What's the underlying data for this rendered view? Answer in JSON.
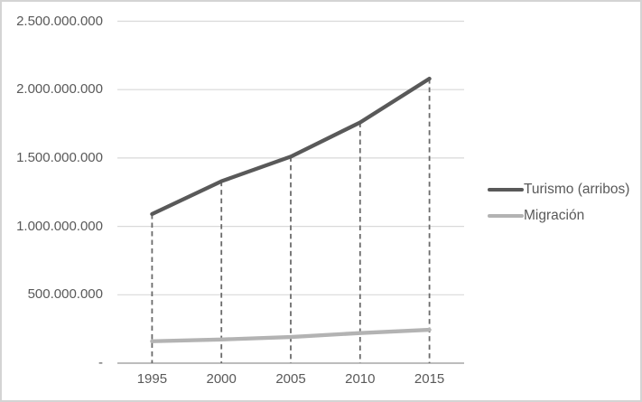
{
  "chart_data": {
    "type": "line",
    "categories": [
      "1995",
      "2000",
      "2005",
      "2010",
      "2015"
    ],
    "series": [
      {
        "id": "turismo",
        "name": "Turismo (arribos)",
        "color": "#595959",
        "values": [
          1090000000,
          1330000000,
          1510000000,
          1760000000,
          2080000000
        ]
      },
      {
        "id": "migracion",
        "name": "Migración",
        "color": "#b3b3b3",
        "values": [
          160000000,
          173000000,
          191000000,
          220000000,
          244000000
        ]
      }
    ],
    "y_axis": {
      "ylim": [
        0,
        2500000000
      ],
      "ticks": [
        {
          "label": "2.500.000.000",
          "value": 2500000000
        },
        {
          "label": "2.000.000.000",
          "value": 2000000000
        },
        {
          "label": "1.500.000.000",
          "value": 1500000000
        },
        {
          "label": "1.000.000.000",
          "value": 1000000000
        },
        {
          "label": "500.000.000",
          "value": 500000000
        },
        {
          "label": "-",
          "value": 0
        }
      ]
    },
    "title": "",
    "xlabel": "",
    "ylabel": "",
    "grid": "horizontal",
    "drop_lines_from_series": "turismo",
    "legend_position": "right",
    "colors": {
      "gridline": "#d9d9d9",
      "axis_line": "#a6a6a6",
      "drop_line": "#6b6b6b",
      "tick_text": "#595959"
    }
  },
  "legend": {
    "items": [
      {
        "label": "Turismo (arribos)"
      },
      {
        "label": "Migración"
      }
    ]
  }
}
